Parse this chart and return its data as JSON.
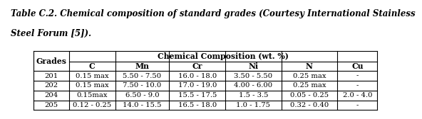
{
  "title_line1": "Table C.2. Chemical composition of standard grades (Courtesy International Stainless",
  "title_line2": "Steel Forum [5]).",
  "header_span": "Chemical Composition (wt. %)",
  "col_headers": [
    "Grades",
    "C",
    "Mn",
    "Cr",
    "Ni",
    "N",
    "Cu"
  ],
  "rows": [
    [
      "201",
      "0.15 max",
      "5.50 - 7.50",
      "16.0 - 18.0",
      "3.50 - 5.50",
      "0.25 max",
      "-"
    ],
    [
      "202",
      "0.15 max",
      "7.50 - 10.0",
      "17.0 - 19.0",
      "4.00 - 6.00",
      "0.25 max",
      "-"
    ],
    [
      "204",
      "0.15max",
      "6.50 - 9.0",
      "15.5 - 17.5",
      "1.5 - 3.5",
      "0.05 - 0.25",
      "2.0 - 4.0"
    ],
    [
      "205",
      "0.12 - 0.25",
      "14.0 - 15.5",
      "16.5 - 18.0",
      "1.0 - 1.75",
      "0.32 - 0.40",
      "-"
    ]
  ],
  "background_color": "#ffffff",
  "title_fontsize": 8.5,
  "header_fontsize": 7.8,
  "cell_fontsize": 7.2
}
